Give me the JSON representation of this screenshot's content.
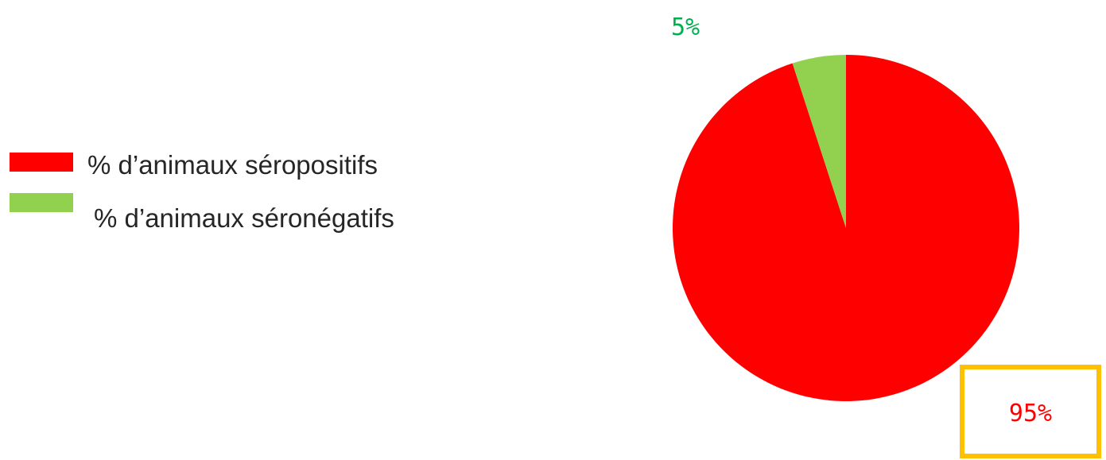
{
  "chart_data": {
    "type": "pie",
    "slices": [
      {
        "label": "% d’animaux séropositifs",
        "value": 95,
        "color": "#ff0000",
        "label_color": "#ff0000"
      },
      {
        "label": "% d’animaux séronégatifs",
        "value": 5,
        "color": "#92d050",
        "label_color": "#00b050"
      }
    ],
    "data_labels": [
      "95%",
      "5%"
    ],
    "legend_position": "left",
    "highlight_color": "#ffc000"
  }
}
